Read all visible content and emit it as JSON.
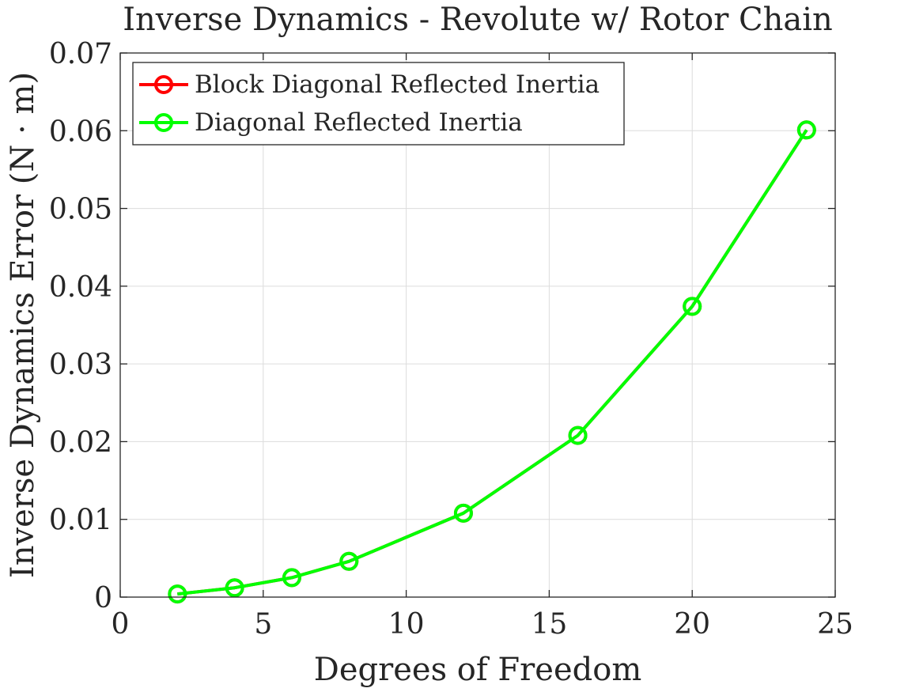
{
  "chart_data": {
    "type": "line",
    "title": "Inverse Dynamics - Revolute w/ Rotor Chain",
    "xlabel": "Degrees of Freedom",
    "ylabel": "Inverse Dynamics Error (N · m)",
    "xlim": [
      0,
      25
    ],
    "ylim": [
      0,
      0.07
    ],
    "xticks": [
      "0",
      "5",
      "10",
      "15",
      "20",
      "25"
    ],
    "yticks": [
      "0",
      "0.01",
      "0.02",
      "0.03",
      "0.04",
      "0.05",
      "0.06",
      "0.07"
    ],
    "grid": true,
    "legend_position": "top-left",
    "x": [
      2,
      4,
      6,
      8,
      12,
      16,
      20,
      24
    ],
    "series": [
      {
        "name": "Block Diagonal Reflected Inertia",
        "color": "#ff0000",
        "marker": "circle",
        "values": [
          0.0004,
          0.0012,
          0.0025,
          0.0046,
          0.0108,
          0.0208,
          0.0374,
          0.0601
        ]
      },
      {
        "name": "Diagonal Reflected Inertia",
        "color": "#00ff00",
        "marker": "circle",
        "values": [
          0.0004,
          0.0012,
          0.0025,
          0.0046,
          0.0108,
          0.0208,
          0.0374,
          0.0601
        ]
      }
    ]
  }
}
